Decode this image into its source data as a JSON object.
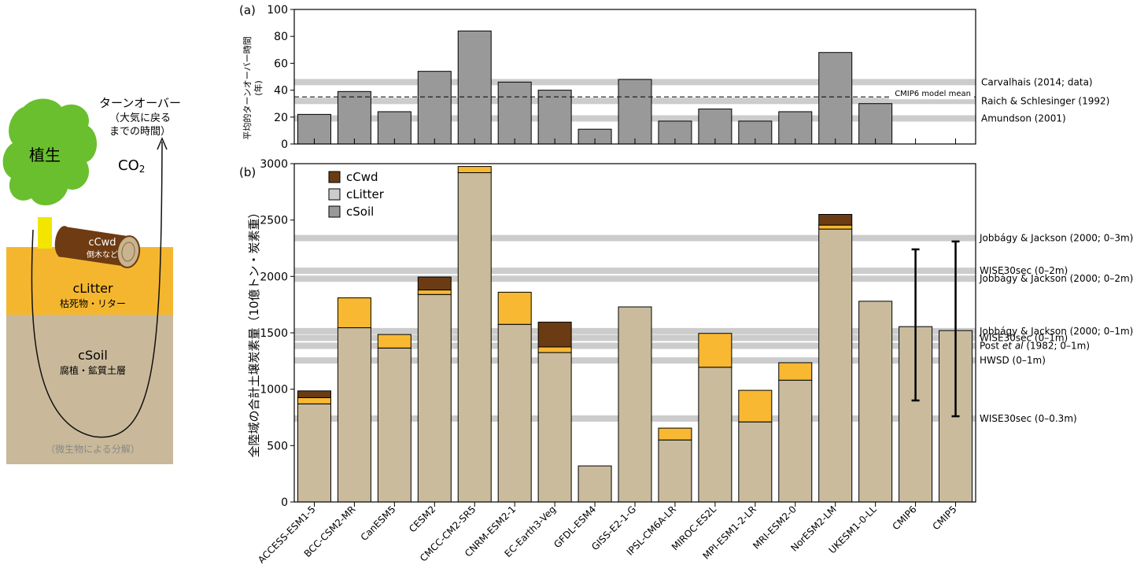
{
  "diagram": {
    "vegetation_label": "植生",
    "cwd_label": "cCwd",
    "cwd_sub": "倒木など",
    "litter_label": "cLitter",
    "litter_sub": "枯死物・リター",
    "soil_label": "cSoil",
    "soil_sub": "腐植・鉱質土層",
    "decomp_label": "（微生物による分解）",
    "turnover_title": "ターンオーバー",
    "turnover_sub1": "（大気に戻る",
    "turnover_sub2": "までの時間）",
    "co2_main": "CO",
    "co2_sub": "2",
    "colors": {
      "vegetation": "#6abf2e",
      "trunk": "#f2e600",
      "log": "#6e3b12",
      "litter": "#f5b62f",
      "soil": "#c9b99a"
    }
  },
  "chart_data": [
    {
      "type": "bar",
      "panel_label": "(a)",
      "ylabel_lines": [
        "平均的ターンオーバー時間",
        "(年)"
      ],
      "ylim": [
        0,
        100
      ],
      "yticks": [
        0,
        20,
        40,
        60,
        80,
        100
      ],
      "categories": [
        "ACCESS-ESM1-5",
        "BCC-CSM2-MR",
        "CanESM5",
        "CESM2",
        "CMCC-CM2-SR5",
        "CNRM-ESM2-1",
        "EC-Earth3-Veg",
        "GFDL-ESM4",
        "GISS-E2-1-G",
        "IPSL-CM6A-LR",
        "MIROC-ES2L",
        "MPI-ESM1-2-LR",
        "MRI-ESM2-0",
        "NorESM2-LM",
        "UKESM1-0-LL",
        "CMIP6",
        "CMIP5"
      ],
      "values": [
        22,
        39,
        24,
        54,
        84,
        46,
        40,
        11,
        48,
        17,
        26,
        17,
        24,
        68,
        30,
        null,
        null
      ],
      "reference_lines": [
        {
          "label": "Carvalhais (2014; data)",
          "value": 46
        },
        {
          "label": "Raich & Schlesinger (1992)",
          "value": 32
        },
        {
          "label": "Amundson (2001)",
          "value": 19
        }
      ],
      "mean_line": {
        "label": "CMIP6 model mean",
        "value": 35
      },
      "colors": {
        "bar": "#999999",
        "reference": "#cccccc"
      }
    },
    {
      "type": "stacked_bar",
      "panel_label": "(b)",
      "ylabel": "全陸域の合計土壌炭素量（10億トン・炭素重）",
      "ylim": [
        0,
        3000
      ],
      "yticks": [
        0,
        500,
        1000,
        1500,
        2000,
        2500,
        3000
      ],
      "categories": [
        "ACCESS-ESM1-5",
        "BCC-CSM2-MR",
        "CanESM5",
        "CESM2",
        "CMCC-CM2-SR5",
        "CNRM-ESM2-1",
        "EC-Earth3-Veg",
        "GFDL-ESM4",
        "GISS-E2-1-G",
        "IPSL-CM6A-LR",
        "MIROC-ES2L",
        "MPI-ESM1-2-LR",
        "MRI-ESM2-0",
        "NorESM2-LM",
        "UKESM1-0-LL",
        "CMIP6",
        "CMIP5"
      ],
      "legend": [
        "cCwd",
        "cLitter",
        "cSoil"
      ],
      "series": [
        {
          "name": "cSoil",
          "values": [
            870,
            1545,
            1365,
            1840,
            2920,
            1575,
            1325,
            320,
            1730,
            550,
            1195,
            710,
            1080,
            2420,
            1780,
            1555,
            1520
          ]
        },
        {
          "name": "cLitter",
          "values": [
            55,
            265,
            120,
            40,
            55,
            285,
            50,
            0,
            0,
            105,
            300,
            280,
            155,
            35,
            0,
            0,
            0
          ]
        },
        {
          "name": "cCwd",
          "values": [
            60,
            0,
            0,
            115,
            0,
            0,
            220,
            0,
            0,
            0,
            0,
            0,
            0,
            95,
            0,
            0,
            0
          ]
        }
      ],
      "error_bars": [
        {
          "category": "CMIP6",
          "low": 900,
          "high": 2240
        },
        {
          "category": "CMIP5",
          "low": 760,
          "high": 2310
        }
      ],
      "reference_lines": [
        {
          "label": "Jobbágy & Jackson (2000; 0–3m)",
          "value": 2340
        },
        {
          "label": "WISE30sec (0–2m)",
          "value": 2050
        },
        {
          "label": "Jobbágy & Jackson (2000; 0–2m)",
          "value": 1980
        },
        {
          "label": "Jobbágy & Jackson (2000; 0–1m)",
          "value": 1515
        },
        {
          "label": "WISE30sec (0–1m)",
          "value": 1455
        },
        {
          "label": "Post et al (1982; 0–1m)",
          "value": 1385
        },
        {
          "label": "HWSD (0–1m)",
          "value": 1255
        },
        {
          "label": "WISE30sec (0–0.3m)",
          "value": 740
        }
      ],
      "colors": {
        "cSoil": "#c9bb9c",
        "cLitter": "#f8b832",
        "cCwd": "#6b3c13",
        "legend_cSoil": "#999999",
        "legend_cLitter": "#cccccc",
        "reference": "#cccccc"
      }
    }
  ]
}
